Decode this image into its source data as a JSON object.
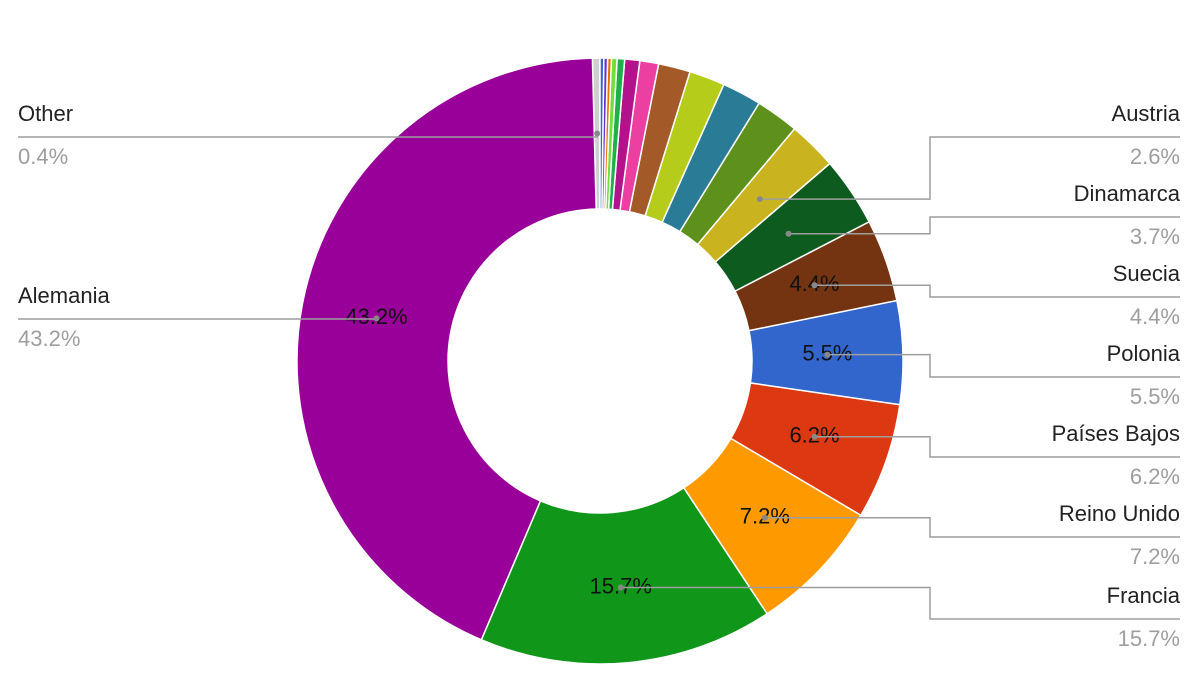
{
  "chart_data": {
    "type": "donut",
    "categories": [
      "Other",
      "Alemania",
      "Francia",
      "Reino Unido",
      "Países Bajos",
      "Polonia",
      "Suecia",
      "Dinamarca",
      "Austria",
      null,
      null,
      null,
      null,
      null,
      null,
      null,
      null,
      null,
      null,
      null
    ],
    "values": [
      0.4,
      43.2,
      15.7,
      7.2,
      6.2,
      5.5,
      4.4,
      3.7,
      2.6,
      2.3,
      2.1,
      1.9,
      1.7,
      1.0,
      0.8,
      0.4,
      0.3,
      0.2,
      0.2,
      0.2
    ],
    "value_labels": [
      "0.4%",
      "43.2%",
      "15.7%",
      "7.2%",
      "6.2%",
      "5.5%",
      "4.4%",
      "3.7%",
      "2.6%",
      null,
      null,
      null,
      null,
      null,
      null,
      null,
      null,
      null,
      null,
      null
    ],
    "colors": [
      "#cfcfcf",
      "#990099",
      "#109618",
      "#ff9900",
      "#dc3912",
      "#3366cc",
      "#743411",
      "#0d5b1f",
      "#c9b420",
      "#5d911c",
      "#2a7b96",
      "#b6cc1a",
      "#a35a28",
      "#ec3fa2",
      "#b3128c",
      "#1fb04a",
      "#6fe03a",
      "#e67300",
      "#6633cc",
      "#3366cc"
    ]
  }
}
